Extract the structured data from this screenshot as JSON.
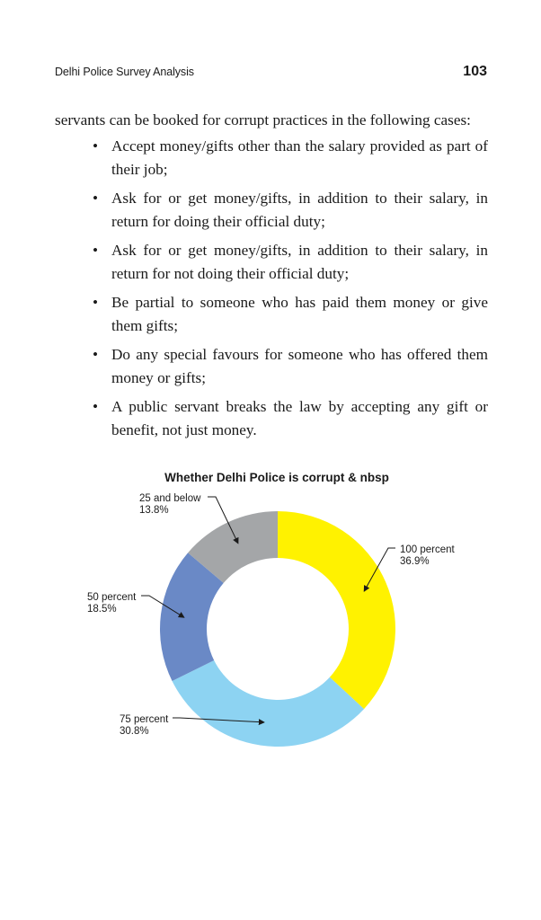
{
  "header": {
    "running_head": "Delhi Police Survey Analysis",
    "page_number": "103"
  },
  "body": {
    "intro": "servants can be booked for corrupt practices in the following cases:",
    "bullets": [
      "Accept money/gifts other than the salary provided as part of their job;",
      "Ask for or get money/gifts, in addition to their salary, in return for doing their official duty;",
      "Ask for or get money/gifts, in addition to their salary, in return for not doing their official duty;",
      "Be partial to someone who has paid them money or give them gifts;",
      "Do any special favours for someone who has offered them money or gifts;",
      "A public servant breaks the law by accepting any gift or benefit, not just money."
    ],
    "bullet_glyph": "•"
  },
  "chart_data": {
    "type": "pie",
    "title": "Whether Delhi Police is corrupt & nbsp",
    "donut": true,
    "slices": [
      {
        "label": "100 percent",
        "value": 36.9,
        "display": "36.9%",
        "color": "#FFF200"
      },
      {
        "label": "75 percent",
        "value": 30.8,
        "display": "30.8%",
        "color": "#8DD3F2"
      },
      {
        "label": "50 percent",
        "value": 18.5,
        "display": "18.5%",
        "color": "#6A89C6"
      },
      {
        "label": "25 and below",
        "value": 13.8,
        "display": "13.8%",
        "color": "#A4A6A8"
      }
    ],
    "legend": "callout labels with arrows"
  }
}
